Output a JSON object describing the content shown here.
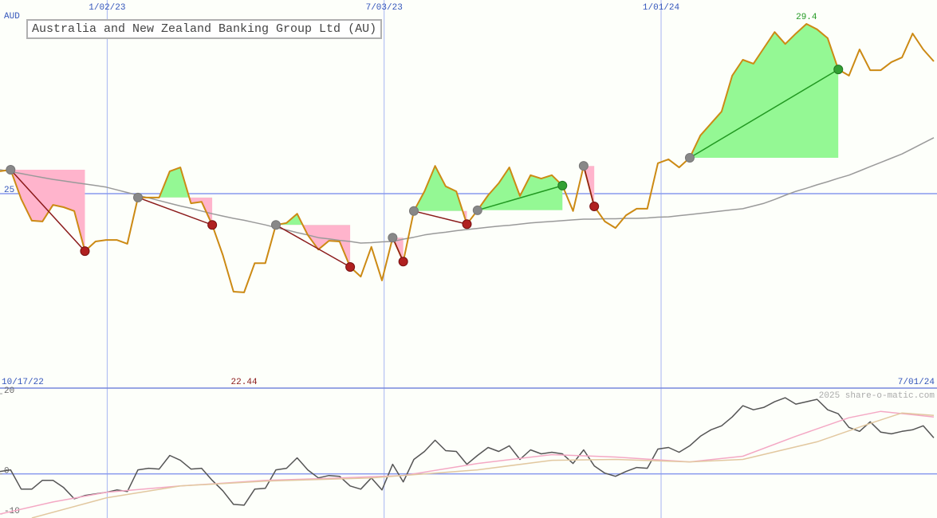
{
  "chart_data": [
    {
      "type": "line",
      "title": "Australia and New Zealand Banking Group Ltd (AU)",
      "y_label": "AUD",
      "x_range_labels": [
        "10/17/22",
        "7/01/24"
      ],
      "xlim": [
        0,
        88.3
      ],
      "xticks": [
        {
          "value": 10.1,
          "label": "1/02/23"
        },
        {
          "value": 36.2,
          "label": "7/03/23"
        },
        {
          "value": 62.3,
          "label": "1/01/24"
        }
      ],
      "ylim": [
        19.96,
        30.02
      ],
      "yticks": [
        25
      ],
      "grid": true,
      "series": [
        {
          "color": "#cc8a14",
          "values": [
            25.58,
            25.62,
            24.86,
            24.3,
            24.28,
            24.71,
            24.65,
            24.55,
            23.51,
            23.76,
            23.8,
            23.8,
            23.7,
            24.9,
            24.9,
            24.9,
            25.58,
            25.68,
            24.75,
            24.79,
            24.19,
            23.41,
            22.46,
            22.44,
            23.2,
            23.2,
            24.19,
            24.24,
            24.48,
            23.93,
            23.55,
            23.78,
            23.76,
            23.1,
            22.85,
            23.62,
            22.75,
            23.86,
            23.24,
            24.55,
            25.06,
            25.72,
            25.19,
            25.06,
            24.21,
            24.57,
            24.96,
            25.27,
            25.68,
            24.94,
            25.48,
            25.39,
            25.48,
            25.21,
            24.55,
            25.72,
            24.67,
            24.28,
            24.11,
            24.44,
            24.61,
            24.61,
            25.79,
            25.89,
            25.68,
            25.93,
            26.51,
            26.82,
            27.13,
            28.06,
            28.47,
            28.37,
            28.78,
            29.19,
            28.88,
            29.15,
            29.4,
            29.26,
            29.03,
            28.22,
            28.06,
            28.74,
            28.2,
            28.2,
            28.41,
            28.53,
            29.15,
            28.74,
            28.43
          ]
        },
        {
          "color": "#9a9a9a",
          "values": [
            25.62,
            25.57,
            25.52,
            25.47,
            25.42,
            25.37,
            25.33,
            25.29,
            25.25,
            25.21,
            25.17,
            25.1,
            25.03,
            24.96,
            24.89,
            24.82,
            24.75,
            24.68,
            24.62,
            24.55,
            24.48,
            24.42,
            24.36,
            24.31,
            24.25,
            24.19,
            24.12,
            24.06,
            23.99,
            23.93,
            23.86,
            23.83,
            23.79,
            23.76,
            23.72,
            23.73,
            23.75,
            23.76,
            23.82,
            23.87,
            23.93,
            23.97,
            24.0,
            24.04,
            24.07,
            24.1,
            24.13,
            24.16,
            24.18,
            24.21,
            24.24,
            24.26,
            24.28,
            24.3,
            24.32,
            24.34,
            24.34,
            24.35,
            24.35,
            24.36,
            24.36,
            24.37,
            24.39,
            24.4,
            24.43,
            24.46,
            24.49,
            24.52,
            24.55,
            24.58,
            24.61,
            24.68,
            24.75,
            24.85,
            24.96,
            25.06,
            25.14,
            25.23,
            25.31,
            25.4,
            25.48,
            25.59,
            25.7,
            25.81,
            25.92,
            26.03,
            26.17,
            26.31,
            26.45
          ]
        }
      ],
      "trades": [
        {
          "entry": 1,
          "exit": 8
        },
        {
          "entry": 13,
          "exit": 20
        },
        {
          "entry": 26,
          "exit": 33
        },
        {
          "entry": 37,
          "exit": 38
        },
        {
          "entry": 39,
          "exit": 44
        },
        {
          "entry": 45,
          "exit": 53
        },
        {
          "entry": 55,
          "exit": 56
        },
        {
          "entry": 65,
          "exit": 79
        }
      ],
      "annotations": {
        "max": 29.4,
        "min": 22.44
      }
    },
    {
      "type": "line",
      "watermark": "2025 share-o-matic.com",
      "xlim": [
        0,
        88.3
      ],
      "ylim": [
        -11,
        21.4
      ],
      "yticks": [
        20,
        0,
        -10
      ],
      "series": [
        {
          "color": "#555555",
          "values": [
            0.6,
            1,
            -3.8,
            -3.8,
            -1.6,
            -1.6,
            -3.4,
            -6.2,
            -5.4,
            -5,
            -4.6,
            -4,
            -4.4,
            1,
            1.4,
            1.2,
            4.6,
            3.4,
            1.2,
            1.4,
            -1.6,
            -4.2,
            -7.6,
            -7.8,
            -3.8,
            -3.6,
            1,
            1.4,
            4,
            1,
            -1,
            -0.4,
            -0.6,
            -3,
            -3.8,
            -1,
            -4,
            2.4,
            -2,
            3.6,
            5.6,
            8.4,
            5.8,
            5.6,
            2.4,
            4.6,
            6.6,
            5.6,
            7,
            3.6,
            6,
            5,
            5.4,
            5,
            2.6,
            6,
            2,
            0.2,
            -0.6,
            0.6,
            1.6,
            1.4,
            6.2,
            6.6,
            5.4,
            7,
            9.4,
            11,
            12,
            14.2,
            17,
            16,
            16.6,
            18,
            19,
            17.4,
            18,
            18.6,
            16,
            15,
            11.6,
            10.6,
            13,
            10.4,
            10,
            10.6,
            11,
            12,
            9
          ]
        },
        {
          "color": "#f4a8c4",
          "x": [
            0,
            5,
            10,
            17,
            25,
            30,
            38,
            45,
            52,
            58,
            65,
            70,
            75,
            80,
            83,
            88
          ],
          "values": [
            -10,
            -7,
            -4.6,
            -3,
            -1.6,
            -1.2,
            -0.4,
            2.6,
            4.8,
            4.2,
            3,
            4.4,
            9.4,
            14,
            15.6,
            14.2
          ]
        },
        {
          "color": "#e2c8a0",
          "x": [
            3,
            10,
            17,
            25,
            35,
            45,
            52,
            58,
            65,
            70,
            77,
            82,
            85,
            88
          ],
          "values": [
            -11,
            -6,
            -3,
            -1.8,
            -1,
            1,
            3.4,
            3.6,
            3,
            3.6,
            8,
            12.6,
            15.2,
            14.6
          ]
        }
      ]
    }
  ]
}
